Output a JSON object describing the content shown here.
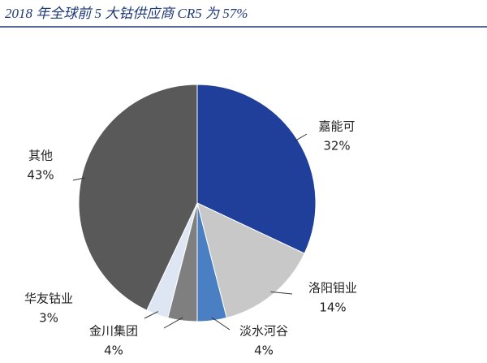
{
  "chart_data": {
    "type": "pie",
    "title": "2018 年全球前 5 大钴供应商 CR5 为 57%",
    "categories": [
      "嘉能可",
      "洛阳钼业",
      "淡水河谷",
      "金川集团",
      "华友钴业",
      "其他"
    ],
    "values": [
      32,
      14,
      4,
      4,
      3,
      43
    ],
    "value_labels": [
      "32%",
      "14%",
      "4%",
      "4%",
      "3%",
      "43%"
    ],
    "colors": [
      "#1f3f9a",
      "#c8c8c8",
      "#4a7fc4",
      "#7f7f7f",
      "#dde6f2",
      "#595959"
    ]
  }
}
